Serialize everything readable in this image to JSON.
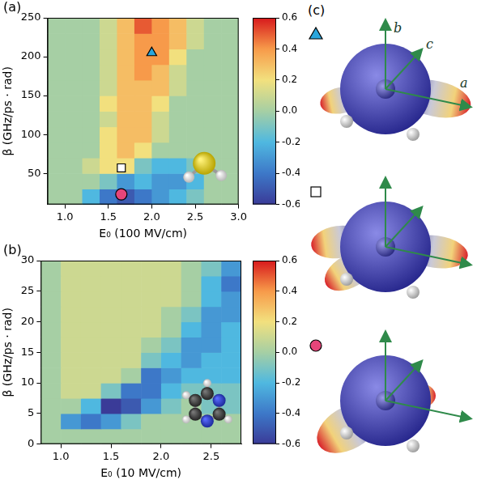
{
  "chart_data": [
    {
      "type": "heatmap",
      "panel_label": "(a)",
      "x_label": "E₀ (100 MV/cm)",
      "y_label": "β (GHz/ps · rad)",
      "xlim": [
        0.8,
        3.0
      ],
      "ylim": [
        10,
        250
      ],
      "xticks": [
        {
          "value": 1.0,
          "label": "1.0"
        },
        1.5,
        {
          "value": 2.0,
          "label": "2.0"
        },
        2.5,
        {
          "value": 3.0,
          "label": "3.0"
        }
      ],
      "yticks": [
        50,
        100,
        150,
        200,
        250
      ],
      "grid": false,
      "x_edges": [
        0.8,
        1.0,
        1.2,
        1.4,
        1.6,
        1.8,
        2.0,
        2.2,
        2.4,
        2.6,
        2.8,
        3.0
      ],
      "y_edges": [
        10,
        30,
        50,
        70,
        90,
        110,
        130,
        150,
        170,
        190,
        210,
        230,
        250
      ],
      "cells": [
        [
          0,
          0,
          -0.2,
          -0.4,
          -0.5,
          -0.4,
          -0.3,
          -0.2,
          -0.1,
          0,
          0
        ],
        [
          0,
          0,
          0,
          -0.1,
          -0.3,
          -0.2,
          -0.3,
          -0.3,
          -0.2,
          0,
          0
        ],
        [
          0,
          0,
          0.1,
          0.2,
          0.2,
          -0.1,
          -0.2,
          -0.2,
          -0.1,
          0,
          0
        ],
        [
          0,
          0,
          0,
          0.2,
          0.3,
          0.2,
          0,
          0,
          0,
          0,
          0
        ],
        [
          0,
          0,
          0,
          0.2,
          0.3,
          0.3,
          0.1,
          0,
          0,
          0,
          0
        ],
        [
          0,
          0,
          0,
          0.1,
          0.3,
          0.3,
          0.1,
          0,
          0,
          0,
          0
        ],
        [
          0,
          0,
          0,
          0.2,
          0.3,
          0.3,
          0.2,
          0,
          0,
          0,
          0
        ],
        [
          0,
          0,
          0,
          0.1,
          0.3,
          0.3,
          0.3,
          0.1,
          0,
          0,
          0
        ],
        [
          0,
          0,
          0,
          0.1,
          0.3,
          0.4,
          0.3,
          0.1,
          0,
          0,
          0
        ],
        [
          0,
          0,
          0,
          0.1,
          0.3,
          0.4,
          0.4,
          0.2,
          0,
          0,
          0
        ],
        [
          0,
          0,
          0,
          0.1,
          0.3,
          0.4,
          0.4,
          0.3,
          0.1,
          0,
          0
        ],
        [
          0,
          0,
          0,
          0.1,
          0.3,
          0.5,
          0.4,
          0.3,
          0.1,
          0,
          0
        ]
      ],
      "colorbar": {
        "range": [
          -0.6,
          0.6
        ],
        "ticks": [
          -0.6,
          -0.4,
          -0.2,
          {
            "value": 0,
            "label": "0.0"
          },
          0.2,
          0.4,
          0.6
        ]
      },
      "markers": [
        {
          "x": 2.0,
          "y": 205,
          "marker": "triangle",
          "color": "#2aa6dc"
        },
        {
          "x": 1.65,
          "y": 57,
          "marker": "square",
          "color": "#ffffff"
        },
        {
          "x": 1.65,
          "y": 23,
          "marker": "circle",
          "color": "#e6457a"
        }
      ]
    },
    {
      "type": "heatmap",
      "panel_label": "(b)",
      "x_label": "E₀ (10 MV/cm)",
      "y_label": "β (GHz/ps · rad)",
      "xlim": [
        0.8,
        2.8
      ],
      "ylim": [
        0,
        30
      ],
      "xticks": [
        {
          "value": 1.0,
          "label": "1.0"
        },
        1.5,
        {
          "value": 2.0,
          "label": "2.0"
        },
        2.5
      ],
      "yticks": [
        0,
        5,
        10,
        15,
        20,
        25,
        30
      ],
      "grid": false,
      "x_edges": [
        0.8,
        1.0,
        1.2,
        1.4,
        1.6,
        1.8,
        2.0,
        2.2,
        2.4,
        2.6,
        2.8
      ],
      "y_edges": [
        0,
        2.5,
        5,
        7.5,
        10,
        12.5,
        15,
        17.5,
        20,
        22.5,
        25,
        27.5,
        30
      ],
      "cells": [
        [
          0,
          0,
          0,
          0,
          0,
          0,
          0,
          0,
          0,
          0
        ],
        [
          0,
          -0.3,
          -0.4,
          -0.3,
          -0.1,
          0,
          0,
          0,
          0,
          0
        ],
        [
          0,
          0,
          -0.2,
          -0.6,
          -0.5,
          -0.3,
          -0.1,
          0,
          -0.1,
          -0.1
        ],
        [
          0,
          0.1,
          0.1,
          -0.1,
          -0.4,
          -0.4,
          -0.2,
          -0.1,
          -0.1,
          -0.1
        ],
        [
          0,
          0.1,
          0.1,
          0.1,
          0,
          -0.4,
          -0.3,
          -0.2,
          -0.2,
          -0.2
        ],
        [
          0,
          0.1,
          0.1,
          0.1,
          0.1,
          -0.1,
          -0.2,
          -0.3,
          -0.2,
          -0.2
        ],
        [
          0,
          0.1,
          0.1,
          0.1,
          0.1,
          0,
          -0.1,
          -0.3,
          -0.3,
          -0.2
        ],
        [
          0,
          0.1,
          0.1,
          0.1,
          0.1,
          0.1,
          0,
          -0.2,
          -0.3,
          -0.2
        ],
        [
          0,
          0.1,
          0.1,
          0.1,
          0.1,
          0.1,
          0,
          -0.1,
          -0.3,
          -0.3
        ],
        [
          0,
          0.1,
          0.1,
          0.1,
          0.1,
          0.1,
          0.1,
          0,
          -0.2,
          -0.3
        ],
        [
          0,
          0.1,
          0.1,
          0.1,
          0.1,
          0.1,
          0.1,
          0,
          -0.2,
          -0.4
        ],
        [
          0,
          0.1,
          0.1,
          0.1,
          0.1,
          0.1,
          0.1,
          0,
          -0.1,
          -0.3
        ]
      ],
      "colorbar": {
        "range": [
          -0.6,
          0.6
        ],
        "ticks": [
          -0.6,
          -0.4,
          -0.2,
          {
            "value": 0,
            "label": "0.0"
          },
          0.2,
          0.4,
          0.6
        ]
      },
      "markers": []
    }
  ],
  "panel_c": {
    "label": "(c)",
    "axis_labels": [
      "a",
      "b",
      "c"
    ],
    "items": [
      {
        "marker": "triangle",
        "color": "#2aa6dc"
      },
      {
        "marker": "square",
        "color": "#ffffff"
      },
      {
        "marker": "circle",
        "color": "#e6457a"
      }
    ]
  }
}
